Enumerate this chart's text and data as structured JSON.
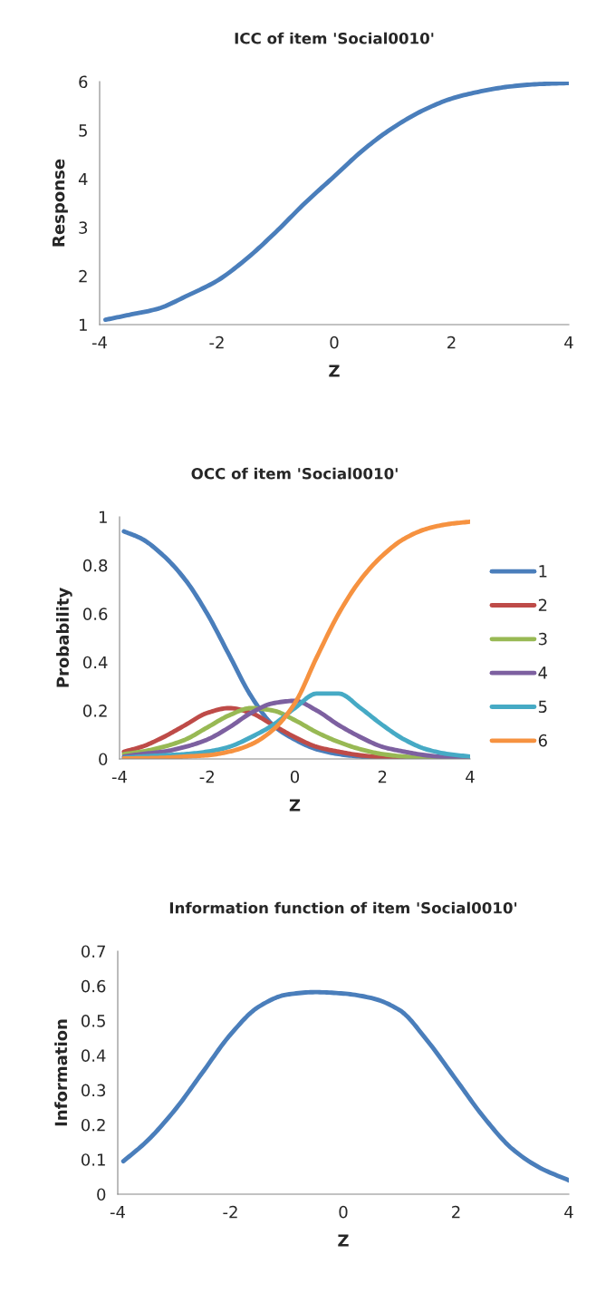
{
  "chart_data": [
    {
      "type": "line",
      "title": "ICC of item 'Social0010'",
      "xlabel": "Z",
      "ylabel": "Response",
      "xlim": [
        -4,
        4
      ],
      "xticks": [
        -4,
        -2,
        0,
        2,
        4
      ],
      "ylim": [
        1,
        6
      ],
      "yticks": [
        1,
        2,
        3,
        4,
        5,
        6
      ],
      "grid": false,
      "legend": false,
      "x": [
        -3.9,
        -3.5,
        -3,
        -2.5,
        -2,
        -1.5,
        -1,
        -0.5,
        0,
        0.5,
        1,
        1.5,
        2,
        2.5,
        3,
        3.5,
        4
      ],
      "series": [
        {
          "color": "#4a7ebb",
          "values": [
            1.1,
            1.2,
            1.33,
            1.6,
            1.9,
            2.35,
            2.9,
            3.5,
            4.05,
            4.6,
            5.05,
            5.4,
            5.65,
            5.8,
            5.9,
            5.95,
            5.97
          ]
        }
      ]
    },
    {
      "type": "line",
      "title": "OCC of item 'Social0010'",
      "xlabel": "Z",
      "ylabel": "Probability",
      "xlim": [
        -4,
        4
      ],
      "xticks": [
        -4,
        -2,
        0,
        2,
        4
      ],
      "ylim": [
        0,
        1
      ],
      "yticks": [
        0,
        0.2,
        0.4,
        0.6,
        0.8,
        1
      ],
      "grid": false,
      "legend": "right",
      "x": [
        -3.9,
        -3.5,
        -3,
        -2.5,
        -2,
        -1.5,
        -1,
        -0.5,
        0,
        0.5,
        1,
        1.5,
        2,
        2.5,
        3,
        3.5,
        4
      ],
      "series": [
        {
          "name": "1",
          "color": "#4a7ebb",
          "values": [
            0.94,
            0.91,
            0.84,
            0.74,
            0.6,
            0.43,
            0.26,
            0.14,
            0.08,
            0.04,
            0.02,
            0.01,
            0.005,
            0,
            0,
            0,
            0
          ]
        },
        {
          "name": "2",
          "color": "#be4b48",
          "values": [
            0.03,
            0.05,
            0.09,
            0.14,
            0.19,
            0.21,
            0.19,
            0.14,
            0.09,
            0.05,
            0.03,
            0.015,
            0.007,
            0.003,
            0,
            null,
            null
          ]
        },
        {
          "name": "3",
          "color": "#98b954",
          "values": [
            0.02,
            0.03,
            0.05,
            0.08,
            0.13,
            0.18,
            0.21,
            0.2,
            0.16,
            0.11,
            0.07,
            0.04,
            0.02,
            0.01,
            0.005,
            0,
            0
          ]
        },
        {
          "name": "4",
          "color": "#7d60a0",
          "values": [
            0.01,
            0.02,
            0.03,
            0.05,
            0.08,
            0.13,
            0.19,
            0.23,
            0.24,
            0.2,
            0.14,
            0.09,
            0.05,
            0.03,
            0.015,
            0.007,
            0.003
          ]
        },
        {
          "name": "5",
          "color": "#46aac5",
          "values": [
            0.005,
            0.01,
            0.015,
            0.02,
            0.03,
            0.05,
            0.09,
            0.14,
            0.21,
            0.27,
            0.27,
            0.21,
            0.14,
            0.08,
            0.04,
            0.02,
            0.01
          ]
        },
        {
          "name": "6",
          "color": "#f69240",
          "values": [
            0.002,
            0.003,
            0.005,
            0.01,
            0.015,
            0.03,
            0.06,
            0.12,
            0.23,
            0.42,
            0.6,
            0.74,
            0.84,
            0.91,
            0.95,
            0.97,
            0.98
          ]
        }
      ]
    },
    {
      "type": "line",
      "title": "Information function of item 'Social0010'",
      "xlabel": "Z",
      "ylabel": "Information",
      "xlim": [
        -4,
        4
      ],
      "xticks": [
        -4,
        -2,
        0,
        2,
        4
      ],
      "ylim": [
        0,
        0.7
      ],
      "yticks": [
        0,
        0.1,
        0.2,
        0.3,
        0.4,
        0.5,
        0.6,
        0.7
      ],
      "grid": false,
      "legend": false,
      "x": [
        -3.9,
        -3.5,
        -3,
        -2.5,
        -2,
        -1.5,
        -1,
        -0.5,
        0,
        0.5,
        1,
        1.5,
        2,
        2.5,
        3,
        3.5,
        4
      ],
      "series": [
        {
          "color": "#4a7ebb",
          "values": [
            0.095,
            0.15,
            0.24,
            0.35,
            0.46,
            0.54,
            0.575,
            0.582,
            0.578,
            0.565,
            0.53,
            0.44,
            0.33,
            0.22,
            0.13,
            0.075,
            0.04
          ]
        }
      ]
    }
  ]
}
